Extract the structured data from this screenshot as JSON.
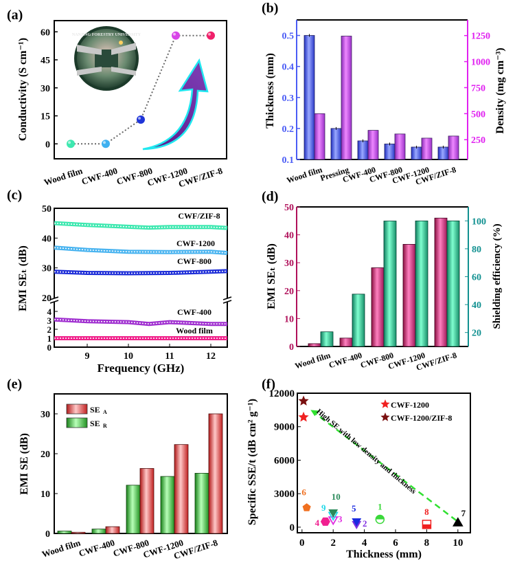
{
  "chart_data": [
    {
      "panel": "(a)",
      "type": "scatter",
      "categories": [
        "Wood film",
        "CWF-400",
        "CWF-800",
        "CWF-1200",
        "CWF/ZIF-8"
      ],
      "values": [
        0,
        0,
        13,
        58,
        58
      ],
      "colors": [
        "#3ee8b0",
        "#3eb0f0",
        "#1f35d8",
        "#d845e8",
        "#f0206a"
      ],
      "ylabel": "Conductivity (S cm⁻¹)",
      "ylim": [
        -8,
        66
      ],
      "yticks": [
        0,
        15,
        30,
        45,
        60
      ],
      "connector": "dotted",
      "inset": "Nanjing Forestry University emblem with lit LED",
      "inset_text": "NANJING FORESTRY UNIVERSITY",
      "arrow": "upward curved arrow"
    },
    {
      "panel": "(b)",
      "type": "bar",
      "categories": [
        "Wood film",
        "Pressing",
        "CWF-400",
        "CWF-800",
        "CWF-1200",
        "CWF/ZIF-8"
      ],
      "series": [
        {
          "name": "Thickness",
          "axis": "left",
          "values": [
            0.5,
            0.2,
            0.16,
            0.15,
            0.14,
            0.14
          ],
          "color": "#5a6cf0"
        },
        {
          "name": "Density",
          "axis": "right",
          "values": [
            500,
            1245,
            340,
            305,
            265,
            285
          ],
          "color": "#c64ee8"
        }
      ],
      "ylabel": "Thickness (mm)",
      "ylim": [
        0.1,
        0.55
      ],
      "yticks": [
        0.1,
        0.2,
        0.3,
        0.4,
        0.5
      ],
      "y2label": "Density (mg cm⁻³)",
      "y2lim": [
        60,
        1400
      ],
      "y2ticks": [
        250,
        500,
        750,
        1000,
        1250
      ],
      "left_axis_color": "#4a5cf5",
      "right_axis_color": "#e020f0"
    },
    {
      "panel": "(c)",
      "type": "line",
      "xlabel": "Frequency (GHz)",
      "ylabel": "EMI SEₜ (dB)",
      "xlim": [
        8.2,
        12.4
      ],
      "xticks": [
        9,
        10,
        11,
        12
      ],
      "ylim_lower": [
        0,
        5
      ],
      "yticks_lower": [
        0,
        1,
        2,
        3,
        4
      ],
      "ylim_upper": [
        20,
        50
      ],
      "yticks_upper": [
        20,
        30,
        40,
        50
      ],
      "axis_break": true,
      "series": [
        {
          "name": "CWF/ZIF-8",
          "color": "#3ee8b0",
          "x": [
            8.2,
            9,
            10,
            10.5,
            11,
            12,
            12.4
          ],
          "y": [
            45,
            44.4,
            43.8,
            43.5,
            43.7,
            43.7,
            43.4
          ]
        },
        {
          "name": "CWF-1200",
          "color": "#4ab4f0",
          "x": [
            8.2,
            9,
            10,
            11,
            12,
            12.4
          ],
          "y": [
            36.8,
            36,
            35.4,
            35.3,
            35.4,
            35
          ]
        },
        {
          "name": "CWF-800",
          "color": "#1f2fd8",
          "x": [
            8.2,
            9,
            10,
            11,
            12,
            12.4
          ],
          "y": [
            28.7,
            28.3,
            28.2,
            28.3,
            28.7,
            28.9
          ]
        },
        {
          "name": "CWF-400",
          "color": "#a030d0",
          "x": [
            8.2,
            9,
            10,
            10.5,
            11,
            12,
            12.4
          ],
          "y": [
            3.1,
            2.9,
            2.8,
            2.6,
            2.8,
            2.6,
            2.6
          ]
        },
        {
          "name": "Wood film",
          "color": "#f0208a",
          "x": [
            8.2,
            9,
            10,
            11,
            12,
            12.4
          ],
          "y": [
            1,
            1,
            1,
            1,
            1,
            1
          ]
        }
      ]
    },
    {
      "panel": "(d)",
      "type": "bar",
      "categories": [
        "Wood film",
        "CWF-400",
        "CWF-800",
        "CWF-1200",
        "CWF/ZIF-8"
      ],
      "series": [
        {
          "name": "EMI SE_T",
          "axis": "left",
          "values": [
            1,
            3,
            28.2,
            36.6,
            46
          ],
          "color": "#e8609c"
        },
        {
          "name": "Shielding efficiency",
          "axis": "right",
          "values": [
            20.5,
            47.5,
            99.9,
            99.98,
            99.99
          ],
          "color": "#3ee8b0"
        }
      ],
      "ylabel": "EMI SEₜ (dB)",
      "ylim": [
        0,
        50
      ],
      "yticks": [
        0,
        10,
        20,
        30,
        40,
        50
      ],
      "y2label": "Shielding efficiency (%)",
      "y2lim": [
        10,
        110
      ],
      "y2ticks": [
        20,
        40,
        60,
        80,
        100
      ],
      "left_axis_color": "#b0105a",
      "right_axis_color": "#109090"
    },
    {
      "panel": "(e)",
      "type": "bar",
      "categories": [
        "Wood film",
        "CWF-400",
        "CWF-800",
        "CWF-1200",
        "CWF/ZIF-8"
      ],
      "series": [
        {
          "name": "SE_R",
          "values": [
            0.6,
            1.1,
            12.1,
            14.3,
            15.1
          ],
          "color": "#5ccf5c"
        },
        {
          "name": "SE_A",
          "values": [
            0.3,
            1.7,
            16.3,
            22.3,
            30
          ],
          "color": "#e86a6a"
        }
      ],
      "legend": [
        {
          "label": "SE",
          "sub": "A",
          "color": "#e86a6a"
        },
        {
          "label": "SE",
          "sub": "R",
          "color": "#5ccf5c"
        }
      ],
      "ylabel": "EMI SE (dB)",
      "ylim": [
        0,
        35
      ],
      "yticks": [
        0,
        10,
        20,
        30
      ],
      "legend_position": "top-left"
    },
    {
      "panel": "(f)",
      "type": "scatter",
      "xlabel": "Thickness (mm)",
      "ylabel": "Specific SSE/t (dB cm² g⁻¹)",
      "xlim": [
        -0.3,
        10.8
      ],
      "xticks": [
        0,
        2,
        4,
        6,
        8,
        10
      ],
      "ylim": [
        -500,
        12000
      ],
      "yticks": [
        0,
        3000,
        6000,
        9000,
        12000
      ],
      "annotation": "High SE with low density and thickness",
      "legend": [
        {
          "label": "CWF-1200",
          "color": "#f02020",
          "marker": "star"
        },
        {
          "label": "CWF-1200/ZIF-8",
          "color": "#7a1010",
          "marker": "star"
        }
      ],
      "points": [
        {
          "label": "CWF-1200",
          "x": 0.1,
          "y": 9850,
          "color": "#f02020",
          "marker": "star"
        },
        {
          "label": "CWF-1200/ZIF-8",
          "x": 0.1,
          "y": 11300,
          "color": "#7a1010",
          "marker": "star"
        },
        {
          "label": "1",
          "x": 5,
          "y": 700,
          "color": "#3ad83a",
          "marker": "half-circle"
        },
        {
          "label": "2",
          "x": 3.5,
          "y": 300,
          "color": "#8030e0",
          "marker": "down-triangle"
        },
        {
          "label": "3",
          "x": 2,
          "y": 700,
          "color": "#e030e0",
          "marker": "down-triangle-open"
        },
        {
          "label": "4",
          "x": 1.5,
          "y": 500,
          "color": "#f02090",
          "marker": "hexagon"
        },
        {
          "label": "5",
          "x": 3.5,
          "y": 550,
          "color": "#1a2ae0",
          "marker": "down-triangle"
        },
        {
          "label": "6",
          "x": 0.3,
          "y": 1750,
          "color": "#f07020",
          "marker": "pentagon"
        },
        {
          "label": "7",
          "x": 10,
          "y": 350,
          "color": "#000000",
          "marker": "up-triangle"
        },
        {
          "label": "8",
          "x": 8,
          "y": 250,
          "color": "#f02020",
          "marker": "half-square"
        },
        {
          "label": "9",
          "x": 2,
          "y": 1100,
          "color": "#20d8e8",
          "marker": "down-triangle-open"
        },
        {
          "label": "10",
          "x": 2,
          "y": 1350,
          "color": "#2a8a5a",
          "marker": "down-triangle"
        }
      ]
    }
  ]
}
